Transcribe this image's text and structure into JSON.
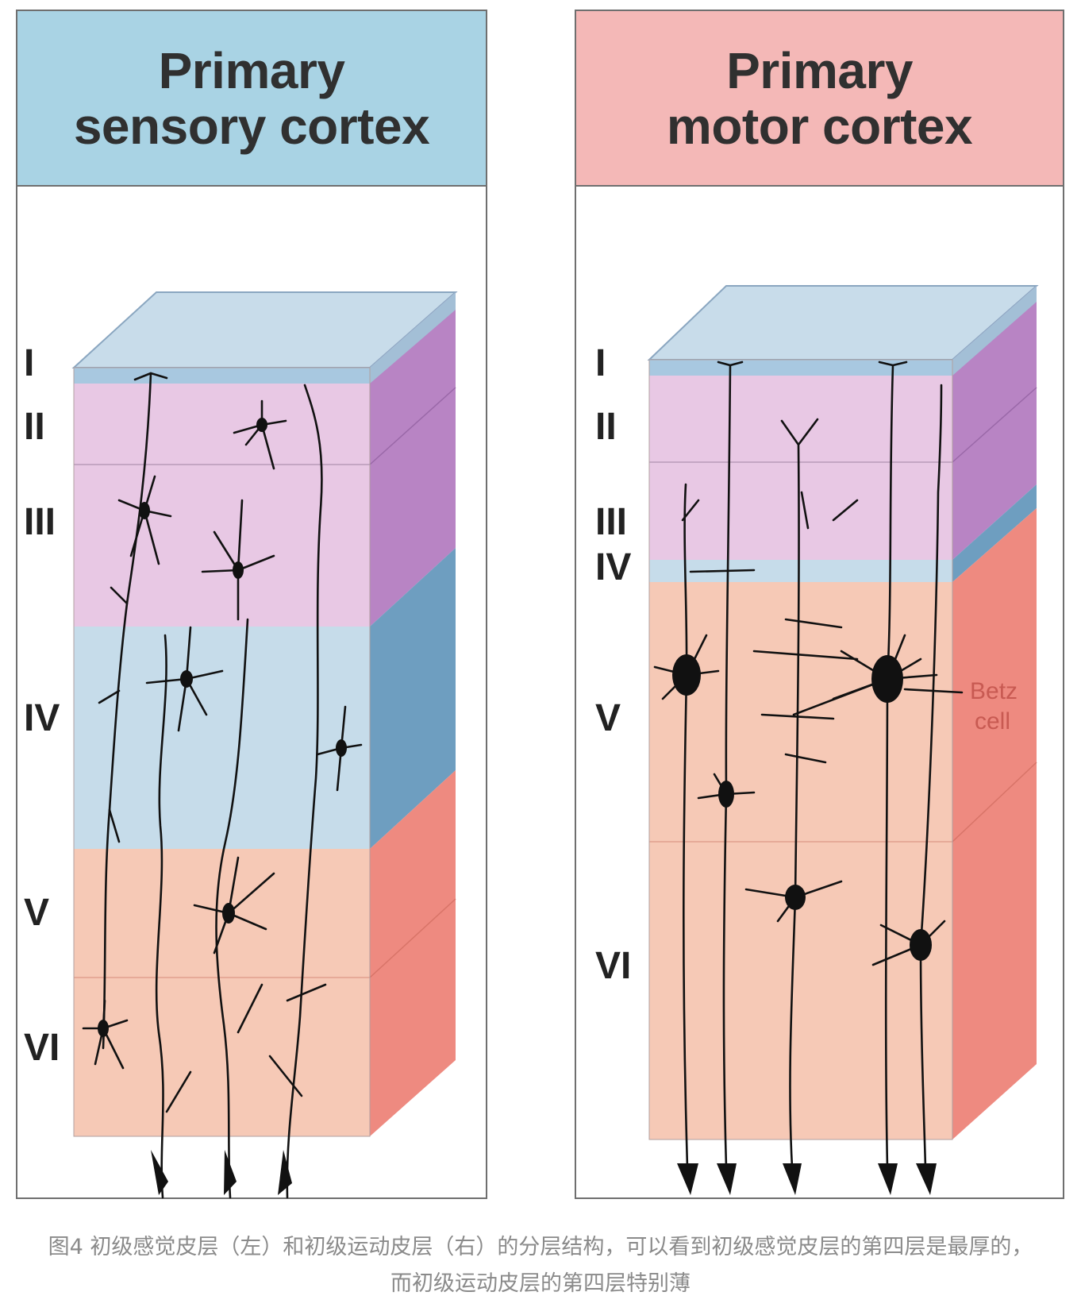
{
  "panels": {
    "sensory": {
      "title_line1": "Primary",
      "title_line2": "sensory cortex",
      "header_color": "#a9d3e4",
      "layers": [
        "I",
        "II",
        "III",
        "IV",
        "V",
        "VI"
      ]
    },
    "motor": {
      "title_line1": "Primary",
      "title_line2": "motor cortex",
      "header_color": "#f4b8b7",
      "layers": [
        "I",
        "II",
        "III",
        "IV",
        "V",
        "VI"
      ],
      "annotation_line1": "Betz",
      "annotation_line2": "cell"
    }
  },
  "layer_colors": {
    "I": "#a8c8e0",
    "II_III": "#e8c8e4",
    "IV": "#c6dcea",
    "V_VI": "#f6c9b6",
    "side_purple": "#b884c4",
    "side_blue": "#6e9ec0",
    "side_red": "#ee8a80"
  },
  "caption": {
    "line1": "图4 初级感觉皮层（左）和初级运动皮层（右）的分层结构，可以看到初级感觉皮层的第四层是最厚的，",
    "line2": "而初级运动皮层的第四层特别薄"
  }
}
